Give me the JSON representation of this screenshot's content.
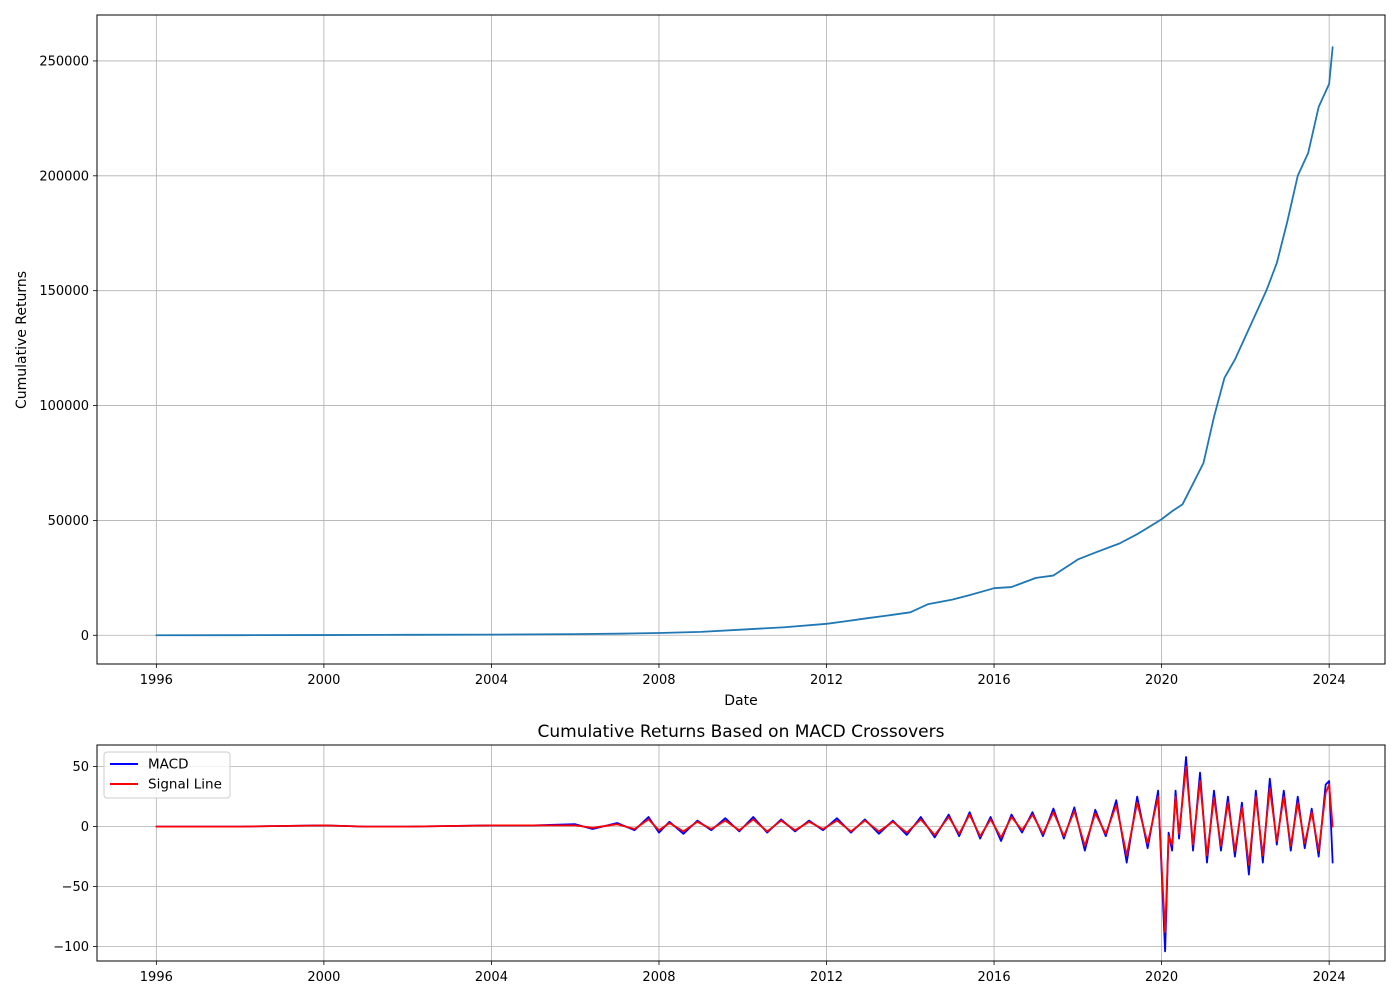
{
  "chart_data": [
    {
      "type": "line",
      "title": "",
      "xlabel": "Date",
      "ylabel": "Cumulative Returns",
      "xlim": [
        "1994-08",
        "2025-05"
      ],
      "ylim": [
        -12500,
        270000
      ],
      "x_ticks": [
        "1996",
        "2000",
        "2004",
        "2008",
        "2012",
        "2016",
        "2020",
        "2024"
      ],
      "y_ticks": [
        0,
        50000,
        100000,
        150000,
        200000,
        250000
      ],
      "y_tick_labels": [
        "0",
        "50000",
        "100000",
        "150000",
        "200000",
        "250000"
      ],
      "grid": true,
      "line_color": "#1f77b4",
      "series": [
        {
          "name": "",
          "x": [
            "1996-01",
            "1998-01",
            "2000-01",
            "2002-01",
            "2004-01",
            "2006-01",
            "2007-01",
            "2008-01",
            "2009-01",
            "2010-01",
            "2011-01",
            "2012-01",
            "2012-06",
            "2013-01",
            "2013-06",
            "2014-01",
            "2014-06",
            "2015-01",
            "2015-06",
            "2016-01",
            "2016-06",
            "2017-01",
            "2017-06",
            "2018-01",
            "2018-06",
            "2019-01",
            "2019-06",
            "2020-01",
            "2020-04",
            "2020-07",
            "2020-10",
            "2021-01",
            "2021-04",
            "2021-07",
            "2021-10",
            "2022-01",
            "2022-04",
            "2022-07",
            "2022-10",
            "2023-01",
            "2023-04",
            "2023-07",
            "2023-10",
            "2024-01",
            "2024-02"
          ],
          "values": [
            0,
            50,
            100,
            200,
            300,
            500,
            700,
            1000,
            1500,
            2500,
            3500,
            5000,
            6000,
            7500,
            8500,
            10000,
            13500,
            15500,
            17500,
            20500,
            21000,
            25000,
            26000,
            33000,
            36000,
            40000,
            44000,
            50500,
            54000,
            57000,
            66000,
            75000,
            95000,
            112000,
            120000,
            130000,
            140000,
            150000,
            162000,
            180000,
            200000,
            210000,
            230000,
            240000,
            256000
          ]
        }
      ]
    },
    {
      "type": "line",
      "title": "Cumulative Returns Based on MACD Crossovers",
      "xlabel": "",
      "ylabel": "",
      "xlim": [
        "1994-08",
        "2025-05"
      ],
      "ylim": [
        -112,
        68
      ],
      "x_ticks": [
        "1996",
        "2000",
        "2004",
        "2008",
        "2012",
        "2016",
        "2020",
        "2024"
      ],
      "y_ticks": [
        -100,
        -50,
        0,
        50
      ],
      "y_tick_labels": [
        "−100",
        "−50",
        "0",
        "50"
      ],
      "grid": true,
      "legend": "top-left",
      "series": [
        {
          "name": "MACD",
          "color": "#0000ff",
          "x": [
            "1996-01",
            "1998-01",
            "2000-01",
            "2001-01",
            "2002-01",
            "2004-01",
            "2005-01",
            "2006-01",
            "2006-06",
            "2007-01",
            "2007-06",
            "2007-10",
            "2008-01",
            "2008-04",
            "2008-08",
            "2008-12",
            "2009-04",
            "2009-08",
            "2009-12",
            "2010-04",
            "2010-08",
            "2010-12",
            "2011-04",
            "2011-08",
            "2011-12",
            "2012-04",
            "2012-08",
            "2012-12",
            "2013-04",
            "2013-08",
            "2013-12",
            "2014-04",
            "2014-08",
            "2014-12",
            "2015-03",
            "2015-06",
            "2015-09",
            "2015-12",
            "2016-03",
            "2016-06",
            "2016-09",
            "2016-12",
            "2017-03",
            "2017-06",
            "2017-09",
            "2017-12",
            "2018-03",
            "2018-06",
            "2018-09",
            "2018-12",
            "2019-03",
            "2019-06",
            "2019-09",
            "2019-12",
            "2020-02",
            "2020-03",
            "2020-04",
            "2020-05",
            "2020-06",
            "2020-08",
            "2020-10",
            "2020-12",
            "2021-02",
            "2021-04",
            "2021-06",
            "2021-08",
            "2021-10",
            "2021-12",
            "2022-02",
            "2022-04",
            "2022-06",
            "2022-08",
            "2022-10",
            "2022-12",
            "2023-02",
            "2023-04",
            "2023-06",
            "2023-08",
            "2023-10",
            "2023-12",
            "2024-01",
            "2024-02"
          ],
          "values": [
            0,
            0,
            1,
            0,
            0,
            1,
            1,
            2,
            -2,
            3,
            -3,
            8,
            -5,
            4,
            -6,
            5,
            -3,
            7,
            -4,
            8,
            -5,
            6,
            -4,
            5,
            -3,
            7,
            -5,
            6,
            -6,
            5,
            -7,
            8,
            -9,
            10,
            -8,
            12,
            -10,
            8,
            -12,
            10,
            -5,
            12,
            -8,
            15,
            -10,
            16,
            -20,
            14,
            -8,
            22,
            -30,
            25,
            -18,
            30,
            -104,
            -5,
            -20,
            30,
            -10,
            58,
            -20,
            45,
            -30,
            30,
            -20,
            25,
            -25,
            20,
            -40,
            30,
            -30,
            40,
            -15,
            30,
            -20,
            25,
            -18,
            15,
            -25,
            35,
            38,
            -30
          ]
        },
        {
          "name": "Signal Line",
          "color": "#ff0000",
          "x": [
            "1996-01",
            "1998-01",
            "2000-01",
            "2001-01",
            "2002-01",
            "2004-01",
            "2005-01",
            "2006-01",
            "2006-06",
            "2007-01",
            "2007-06",
            "2007-10",
            "2008-01",
            "2008-04",
            "2008-08",
            "2008-12",
            "2009-04",
            "2009-08",
            "2009-12",
            "2010-04",
            "2010-08",
            "2010-12",
            "2011-04",
            "2011-08",
            "2011-12",
            "2012-04",
            "2012-08",
            "2012-12",
            "2013-04",
            "2013-08",
            "2013-12",
            "2014-04",
            "2014-08",
            "2014-12",
            "2015-03",
            "2015-06",
            "2015-09",
            "2015-12",
            "2016-03",
            "2016-06",
            "2016-09",
            "2016-12",
            "2017-03",
            "2017-06",
            "2017-09",
            "2017-12",
            "2018-03",
            "2018-06",
            "2018-09",
            "2018-12",
            "2019-03",
            "2019-06",
            "2019-09",
            "2019-12",
            "2020-02",
            "2020-03",
            "2020-04",
            "2020-05",
            "2020-06",
            "2020-08",
            "2020-10",
            "2020-12",
            "2021-02",
            "2021-04",
            "2021-06",
            "2021-08",
            "2021-10",
            "2021-12",
            "2022-02",
            "2022-04",
            "2022-06",
            "2022-08",
            "2022-10",
            "2022-12",
            "2023-02",
            "2023-04",
            "2023-06",
            "2023-08",
            "2023-10",
            "2023-12",
            "2024-01",
            "2024-02"
          ],
          "values": [
            0,
            0,
            1,
            0,
            0,
            1,
            1,
            1,
            -1,
            2,
            -2,
            6,
            -3,
            3,
            -4,
            4,
            -2,
            5,
            -3,
            6,
            -4,
            5,
            -3,
            4,
            -2,
            5,
            -4,
            5,
            -4,
            4,
            -5,
            6,
            -7,
            8,
            -6,
            10,
            -8,
            6,
            -9,
            8,
            -3,
            10,
            -6,
            12,
            -8,
            13,
            -16,
            11,
            -6,
            18,
            -24,
            20,
            -14,
            25,
            -88,
            -8,
            -15,
            25,
            -6,
            50,
            -15,
            38,
            -24,
            24,
            -16,
            20,
            -20,
            16,
            -32,
            25,
            -24,
            32,
            -12,
            25,
            -16,
            20,
            -14,
            12,
            -20,
            28,
            35,
            0
          ]
        }
      ]
    }
  ]
}
